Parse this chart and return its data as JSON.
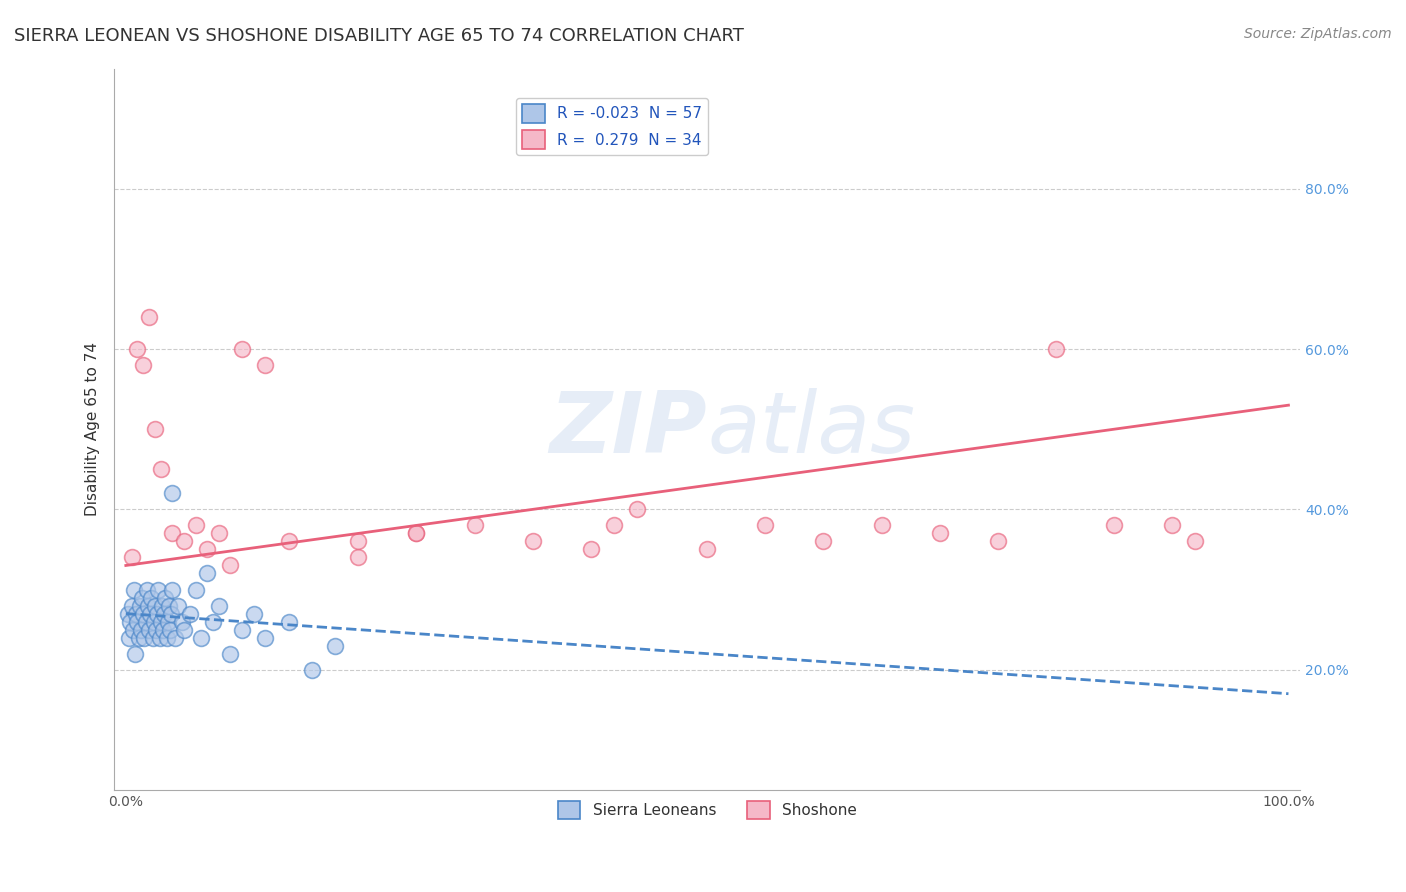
{
  "title": "SIERRA LEONEAN VS SHOSHONE DISABILITY AGE 65 TO 74 CORRELATION CHART",
  "source_text": "Source: ZipAtlas.com",
  "ylabel": "Disability Age 65 to 74",
  "r_sierra": -0.023,
  "n_sierra": 57,
  "r_shoshone": 0.279,
  "n_shoshone": 34,
  "sierra_color": "#aec6e8",
  "shoshone_color": "#f5b8c8",
  "sierra_line_color": "#4a86c8",
  "shoshone_line_color": "#e8607a",
  "watermark": "ZIPatlas",
  "sierra_x": [
    0.2,
    0.3,
    0.4,
    0.5,
    0.6,
    0.7,
    0.8,
    0.9,
    1.0,
    1.1,
    1.2,
    1.3,
    1.4,
    1.5,
    1.6,
    1.7,
    1.8,
    1.9,
    2.0,
    2.1,
    2.2,
    2.3,
    2.4,
    2.5,
    2.6,
    2.7,
    2.8,
    2.9,
    3.0,
    3.1,
    3.2,
    3.3,
    3.4,
    3.5,
    3.6,
    3.7,
    3.8,
    3.9,
    4.0,
    4.2,
    4.5,
    4.8,
    5.0,
    5.5,
    6.0,
    6.5,
    7.0,
    7.5,
    8.0,
    9.0,
    10.0,
    11.0,
    12.0,
    14.0,
    16.0,
    18.0,
    4.0
  ],
  "sierra_y": [
    27.0,
    24.0,
    26.0,
    28.0,
    25.0,
    30.0,
    22.0,
    27.0,
    26.0,
    24.0,
    28.0,
    25.0,
    29.0,
    27.0,
    24.0,
    26.0,
    30.0,
    28.0,
    25.0,
    27.0,
    29.0,
    24.0,
    26.0,
    28.0,
    25.0,
    27.0,
    30.0,
    24.0,
    26.0,
    28.0,
    25.0,
    27.0,
    29.0,
    24.0,
    26.0,
    28.0,
    25.0,
    27.0,
    30.0,
    24.0,
    28.0,
    26.0,
    25.0,
    27.0,
    30.0,
    24.0,
    32.0,
    26.0,
    28.0,
    22.0,
    25.0,
    27.0,
    24.0,
    26.0,
    20.0,
    23.0,
    42.0
  ],
  "shoshone_x": [
    0.5,
    1.0,
    1.5,
    2.0,
    2.5,
    3.0,
    4.0,
    5.0,
    6.0,
    7.0,
    8.0,
    9.0,
    10.0,
    12.0,
    14.0,
    20.0,
    25.0,
    30.0,
    35.0,
    40.0,
    42.0,
    44.0,
    50.0,
    55.0,
    60.0,
    65.0,
    70.0,
    75.0,
    80.0,
    85.0,
    90.0,
    92.0,
    20.0,
    25.0
  ],
  "shoshone_y": [
    34.0,
    60.0,
    58.0,
    64.0,
    50.0,
    45.0,
    37.0,
    36.0,
    38.0,
    35.0,
    37.0,
    33.0,
    60.0,
    58.0,
    36.0,
    34.0,
    37.0,
    38.0,
    36.0,
    35.0,
    38.0,
    40.0,
    35.0,
    38.0,
    36.0,
    38.0,
    37.0,
    36.0,
    60.0,
    38.0,
    38.0,
    36.0,
    36.0,
    37.0
  ],
  "xlim": [
    -1,
    101
  ],
  "ylim": [
    5,
    95
  ],
  "yticks_right": [
    20,
    40,
    60,
    80
  ],
  "yticklabels_right": [
    "20.0%",
    "40.0%",
    "60.0%",
    "80.0%"
  ],
  "xtick_left_label": "0.0%",
  "xtick_right_label": "100.0%",
  "grid_color": "#cccccc",
  "background_color": "#ffffff",
  "title_fontsize": 13,
  "axis_label_fontsize": 11,
  "tick_fontsize": 10,
  "legend_fontsize": 11,
  "source_fontsize": 10,
  "sierra_trend_start_y": 27.0,
  "sierra_trend_end_y": 17.0,
  "shoshone_trend_start_y": 33.0,
  "shoshone_trend_end_y": 53.0
}
